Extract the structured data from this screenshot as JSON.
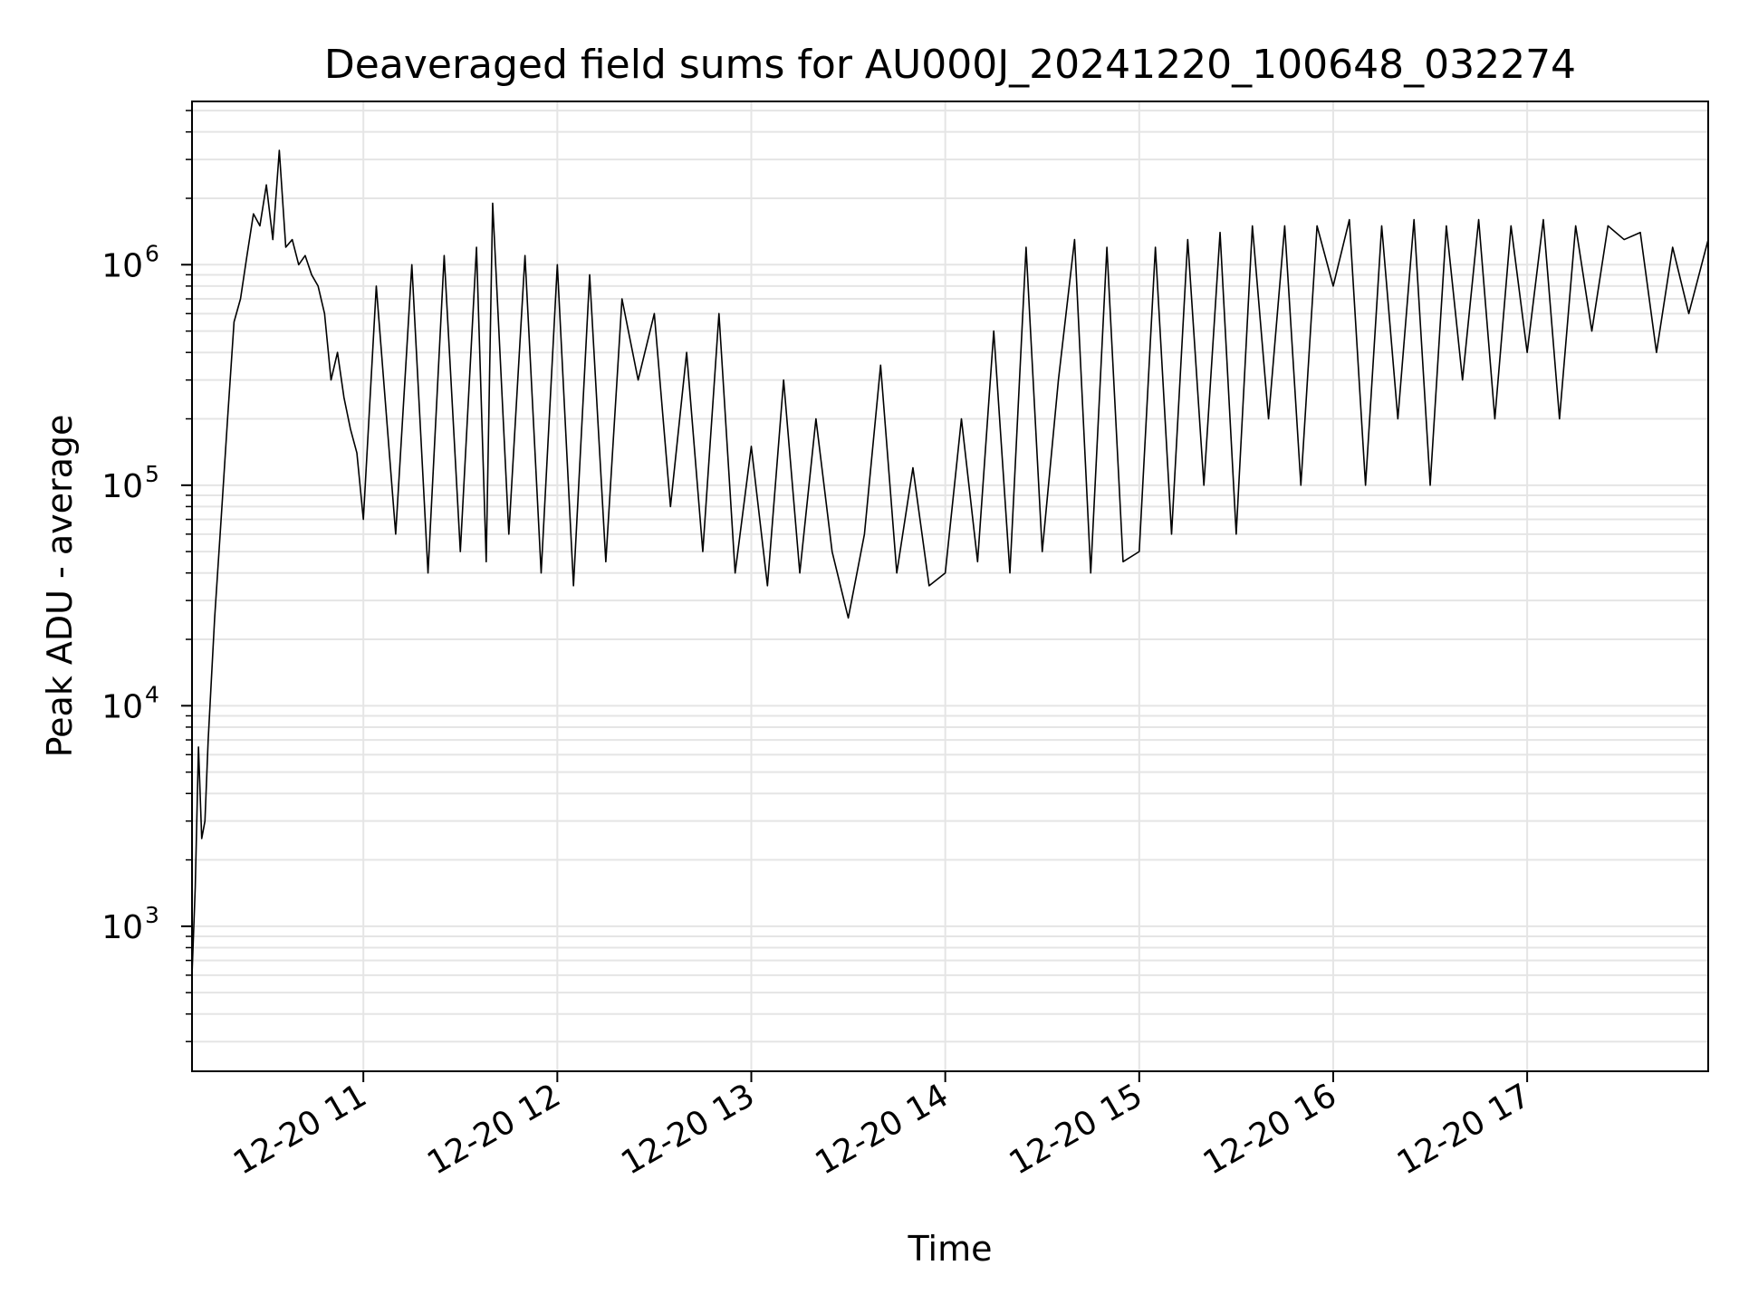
{
  "chart_data": {
    "type": "line",
    "title": "Deaveraged field sums for AU000J_20241220_100648_032274",
    "xlabel": "Time",
    "ylabel": "Peak ADU - average",
    "yscale": "log",
    "ylim": [
      220,
      5500000
    ],
    "xlim": [
      "2024-12-20 10:07",
      "2024-12-20 17:56"
    ],
    "grid": true,
    "grid_minor": true,
    "line_color": "#000000",
    "grid_color": "#e5e5e5",
    "x_ticks": [
      {
        "time": "2024-12-20 11:00",
        "label": "12-20 11"
      },
      {
        "time": "2024-12-20 12:00",
        "label": "12-20 12"
      },
      {
        "time": "2024-12-20 13:00",
        "label": "12-20 13"
      },
      {
        "time": "2024-12-20 14:00",
        "label": "12-20 14"
      },
      {
        "time": "2024-12-20 15:00",
        "label": "12-20 15"
      },
      {
        "time": "2024-12-20 16:00",
        "label": "12-20 16"
      },
      {
        "time": "2024-12-20 17:00",
        "label": "12-20 17"
      }
    ],
    "y_ticks": [
      {
        "value": 1000,
        "base": "10",
        "exp": "3"
      },
      {
        "value": 10000,
        "base": "10",
        "exp": "4"
      },
      {
        "value": 100000,
        "base": "10",
        "exp": "5"
      },
      {
        "value": 1000000,
        "base": "10",
        "exp": "6"
      }
    ],
    "series": [
      {
        "points": [
          [
            "2024-12-20 10:07",
            600
          ],
          [
            "2024-12-20 10:08",
            1500
          ],
          [
            "2024-12-20 10:09",
            6500
          ],
          [
            "2024-12-20 10:10",
            2500
          ],
          [
            "2024-12-20 10:11",
            3000
          ],
          [
            "2024-12-20 10:12",
            7000
          ],
          [
            "2024-12-20 10:14",
            25000
          ],
          [
            "2024-12-20 10:16",
            70000
          ],
          [
            "2024-12-20 10:18",
            200000
          ],
          [
            "2024-12-20 10:20",
            550000
          ],
          [
            "2024-12-20 10:22",
            700000
          ],
          [
            "2024-12-20 10:24",
            1100000
          ],
          [
            "2024-12-20 10:26",
            1700000
          ],
          [
            "2024-12-20 10:28",
            1500000
          ],
          [
            "2024-12-20 10:30",
            2300000
          ],
          [
            "2024-12-20 10:32",
            1300000
          ],
          [
            "2024-12-20 10:34",
            3300000
          ],
          [
            "2024-12-20 10:36",
            1200000
          ],
          [
            "2024-12-20 10:38",
            1300000
          ],
          [
            "2024-12-20 10:40",
            1000000
          ],
          [
            "2024-12-20 10:42",
            1100000
          ],
          [
            "2024-12-20 10:44",
            900000
          ],
          [
            "2024-12-20 10:46",
            800000
          ],
          [
            "2024-12-20 10:48",
            600000
          ],
          [
            "2024-12-20 10:50",
            300000
          ],
          [
            "2024-12-20 10:52",
            400000
          ],
          [
            "2024-12-20 10:54",
            250000
          ],
          [
            "2024-12-20 10:56",
            180000
          ],
          [
            "2024-12-20 10:58",
            140000
          ],
          [
            "2024-12-20 11:00",
            70000
          ],
          [
            "2024-12-20 11:04",
            800000
          ],
          [
            "2024-12-20 11:10",
            60000
          ],
          [
            "2024-12-20 11:15",
            1000000
          ],
          [
            "2024-12-20 11:20",
            40000
          ],
          [
            "2024-12-20 11:25",
            1100000
          ],
          [
            "2024-12-20 11:30",
            50000
          ],
          [
            "2024-12-20 11:35",
            1200000
          ],
          [
            "2024-12-20 11:38",
            45000
          ],
          [
            "2024-12-20 11:40",
            1900000
          ],
          [
            "2024-12-20 11:45",
            60000
          ],
          [
            "2024-12-20 11:50",
            1100000
          ],
          [
            "2024-12-20 11:55",
            40000
          ],
          [
            "2024-12-20 12:00",
            1000000
          ],
          [
            "2024-12-20 12:05",
            35000
          ],
          [
            "2024-12-20 12:10",
            900000
          ],
          [
            "2024-12-20 12:15",
            45000
          ],
          [
            "2024-12-20 12:20",
            700000
          ],
          [
            "2024-12-20 12:25",
            300000
          ],
          [
            "2024-12-20 12:30",
            600000
          ],
          [
            "2024-12-20 12:35",
            80000
          ],
          [
            "2024-12-20 12:40",
            400000
          ],
          [
            "2024-12-20 12:45",
            50000
          ],
          [
            "2024-12-20 12:50",
            600000
          ],
          [
            "2024-12-20 12:55",
            40000
          ],
          [
            "2024-12-20 13:00",
            150000
          ],
          [
            "2024-12-20 13:05",
            35000
          ],
          [
            "2024-12-20 13:10",
            300000
          ],
          [
            "2024-12-20 13:15",
            40000
          ],
          [
            "2024-12-20 13:20",
            200000
          ],
          [
            "2024-12-20 13:25",
            50000
          ],
          [
            "2024-12-20 13:30",
            25000
          ],
          [
            "2024-12-20 13:35",
            60000
          ],
          [
            "2024-12-20 13:40",
            350000
          ],
          [
            "2024-12-20 13:45",
            40000
          ],
          [
            "2024-12-20 13:50",
            120000
          ],
          [
            "2024-12-20 13:55",
            35000
          ],
          [
            "2024-12-20 14:00",
            40000
          ],
          [
            "2024-12-20 14:05",
            200000
          ],
          [
            "2024-12-20 14:10",
            45000
          ],
          [
            "2024-12-20 14:15",
            500000
          ],
          [
            "2024-12-20 14:20",
            40000
          ],
          [
            "2024-12-20 14:25",
            1200000
          ],
          [
            "2024-12-20 14:30",
            50000
          ],
          [
            "2024-12-20 14:35",
            300000
          ],
          [
            "2024-12-20 14:40",
            1300000
          ],
          [
            "2024-12-20 14:45",
            40000
          ],
          [
            "2024-12-20 14:50",
            1200000
          ],
          [
            "2024-12-20 14:55",
            45000
          ],
          [
            "2024-12-20 15:00",
            50000
          ],
          [
            "2024-12-20 15:05",
            1200000
          ],
          [
            "2024-12-20 15:10",
            60000
          ],
          [
            "2024-12-20 15:15",
            1300000
          ],
          [
            "2024-12-20 15:20",
            100000
          ],
          [
            "2024-12-20 15:25",
            1400000
          ],
          [
            "2024-12-20 15:30",
            60000
          ],
          [
            "2024-12-20 15:35",
            1500000
          ],
          [
            "2024-12-20 15:40",
            200000
          ],
          [
            "2024-12-20 15:45",
            1500000
          ],
          [
            "2024-12-20 15:50",
            100000
          ],
          [
            "2024-12-20 15:55",
            1500000
          ],
          [
            "2024-12-20 16:00",
            800000
          ],
          [
            "2024-12-20 16:05",
            1600000
          ],
          [
            "2024-12-20 16:10",
            100000
          ],
          [
            "2024-12-20 16:15",
            1500000
          ],
          [
            "2024-12-20 16:20",
            200000
          ],
          [
            "2024-12-20 16:25",
            1600000
          ],
          [
            "2024-12-20 16:30",
            100000
          ],
          [
            "2024-12-20 16:35",
            1500000
          ],
          [
            "2024-12-20 16:40",
            300000
          ],
          [
            "2024-12-20 16:45",
            1600000
          ],
          [
            "2024-12-20 16:50",
            200000
          ],
          [
            "2024-12-20 16:55",
            1500000
          ],
          [
            "2024-12-20 17:00",
            400000
          ],
          [
            "2024-12-20 17:05",
            1600000
          ],
          [
            "2024-12-20 17:10",
            200000
          ],
          [
            "2024-12-20 17:15",
            1500000
          ],
          [
            "2024-12-20 17:20",
            500000
          ],
          [
            "2024-12-20 17:25",
            1500000
          ],
          [
            "2024-12-20 17:30",
            1300000
          ],
          [
            "2024-12-20 17:35",
            1400000
          ],
          [
            "2024-12-20 17:40",
            400000
          ],
          [
            "2024-12-20 17:45",
            1200000
          ],
          [
            "2024-12-20 17:50",
            600000
          ],
          [
            "2024-12-20 17:56",
            1300000
          ]
        ]
      }
    ]
  }
}
